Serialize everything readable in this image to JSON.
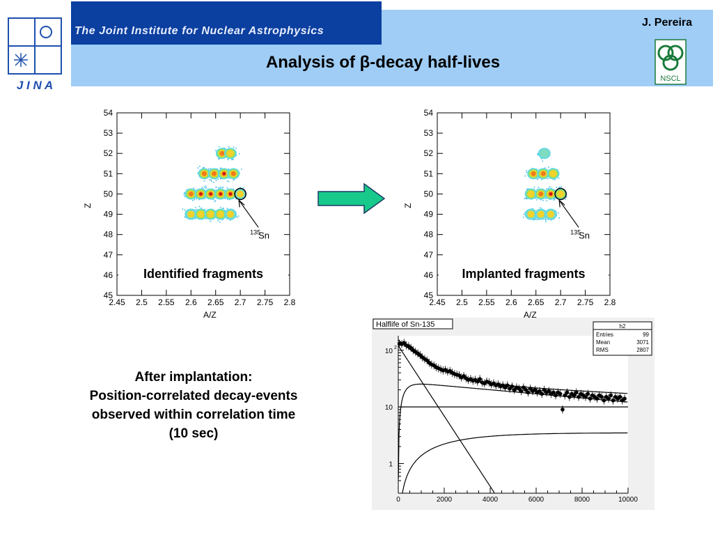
{
  "header": {
    "institute": "The Joint Institute for Nuclear Astrophysics",
    "author": "J. Pereira",
    "title": "Analysis of β-decay half-lives",
    "jina_logo_text": "J I N A",
    "nscl_logo_text": "NSCL"
  },
  "caption": {
    "line1": "After implantation:",
    "line2": "Position-correlated decay-events",
    "line3": "observed within correlation time",
    "line4": "(10 sec)"
  },
  "chart_data": [
    {
      "type": "heatmap",
      "title": "",
      "inset_label": "Identified fragments",
      "xlabel": "A/Z",
      "ylabel": "Z",
      "xlim": [
        2.45,
        2.8
      ],
      "ylim": [
        45,
        54
      ],
      "x_ticks": [
        "2.45",
        "2.5",
        "2.55",
        "2.6",
        "2.65",
        "2.7",
        "2.75",
        "2.8"
      ],
      "y_ticks": [
        "45",
        "46",
        "47",
        "48",
        "49",
        "50",
        "51",
        "52",
        "53",
        "54"
      ],
      "annotation": {
        "text": "Sn",
        "mass": "135",
        "x": 2.7,
        "y": 50
      },
      "blobs": [
        {
          "x": 2.663,
          "y": 52,
          "intensity": 0.75
        },
        {
          "x": 2.68,
          "y": 52,
          "intensity": 0.6
        },
        {
          "x": 2.627,
          "y": 51,
          "intensity": 0.65
        },
        {
          "x": 2.647,
          "y": 51,
          "intensity": 0.8
        },
        {
          "x": 2.667,
          "y": 51,
          "intensity": 0.85
        },
        {
          "x": 2.686,
          "y": 51,
          "intensity": 0.7
        },
        {
          "x": 2.6,
          "y": 50,
          "intensity": 0.7
        },
        {
          "x": 2.62,
          "y": 50,
          "intensity": 0.85
        },
        {
          "x": 2.64,
          "y": 50,
          "intensity": 1.0
        },
        {
          "x": 2.66,
          "y": 50,
          "intensity": 0.95
        },
        {
          "x": 2.68,
          "y": 50,
          "intensity": 0.9
        },
        {
          "x": 2.7,
          "y": 50,
          "intensity": 0.45
        },
        {
          "x": 2.6,
          "y": 49,
          "intensity": 0.5
        },
        {
          "x": 2.62,
          "y": 49,
          "intensity": 0.55
        },
        {
          "x": 2.64,
          "y": 49,
          "intensity": 0.6
        },
        {
          "x": 2.66,
          "y": 49,
          "intensity": 0.6
        },
        {
          "x": 2.68,
          "y": 49,
          "intensity": 0.5
        }
      ]
    },
    {
      "type": "heatmap",
      "title": "",
      "inset_label": "Implanted fragments",
      "xlabel": "A/Z",
      "ylabel": "Z",
      "xlim": [
        2.45,
        2.8
      ],
      "ylim": [
        45,
        54
      ],
      "x_ticks": [
        "2.45",
        "2.5",
        "2.55",
        "2.6",
        "2.65",
        "2.7",
        "2.75",
        "2.8"
      ],
      "y_ticks": [
        "45",
        "46",
        "47",
        "48",
        "49",
        "50",
        "51",
        "52",
        "53",
        "54"
      ],
      "annotation": {
        "text": "Sn",
        "mass": "135",
        "x": 2.7,
        "y": 50
      },
      "blobs": [
        {
          "x": 2.667,
          "y": 52,
          "intensity": 0.35
        },
        {
          "x": 2.645,
          "y": 51,
          "intensity": 0.75
        },
        {
          "x": 2.665,
          "y": 51,
          "intensity": 0.8
        },
        {
          "x": 2.685,
          "y": 51,
          "intensity": 0.55
        },
        {
          "x": 2.64,
          "y": 50,
          "intensity": 0.55
        },
        {
          "x": 2.66,
          "y": 50,
          "intensity": 0.75
        },
        {
          "x": 2.68,
          "y": 50,
          "intensity": 0.95
        },
        {
          "x": 2.7,
          "y": 50,
          "intensity": 0.6
        },
        {
          "x": 2.64,
          "y": 49,
          "intensity": 0.45
        },
        {
          "x": 2.66,
          "y": 49,
          "intensity": 0.5
        },
        {
          "x": 2.68,
          "y": 49,
          "intensity": 0.45
        }
      ]
    },
    {
      "type": "scatter",
      "title": "Halflife of Sn-135",
      "xlabel": "",
      "ylabel": "",
      "xlim": [
        0,
        10000
      ],
      "ylim": [
        0.3,
        180
      ],
      "y_scale": "log",
      "x_ticks": [
        "0",
        "2000",
        "4000",
        "6000",
        "8000",
        "10000"
      ],
      "y_ticks": [
        {
          "value": 100,
          "label": "10",
          "sup": "2"
        },
        {
          "value": 10,
          "label": "10",
          "sup": ""
        },
        {
          "value": 1,
          "label": "1",
          "sup": ""
        }
      ],
      "stats_box": {
        "name": "h2",
        "rows": [
          {
            "label": "Entries",
            "value": "99"
          },
          {
            "label": "Mean",
            "value": "3071"
          },
          {
            "label": "RMS",
            "value": "2807"
          }
        ]
      },
      "points": [
        [
          50,
          130
        ],
        [
          150,
          128
        ],
        [
          250,
          135
        ],
        [
          350,
          122
        ],
        [
          450,
          118
        ],
        [
          550,
          110
        ],
        [
          650,
          100
        ],
        [
          750,
          94
        ],
        [
          850,
          88
        ],
        [
          950,
          82
        ],
        [
          1050,
          75
        ],
        [
          1150,
          70
        ],
        [
          1250,
          66
        ],
        [
          1350,
          60
        ],
        [
          1450,
          56
        ],
        [
          1550,
          54
        ],
        [
          1650,
          50
        ],
        [
          1750,
          48
        ],
        [
          1850,
          46
        ],
        [
          1950,
          44
        ],
        [
          2050,
          45
        ],
        [
          2150,
          42
        ],
        [
          2250,
          43
        ],
        [
          2350,
          40
        ],
        [
          2450,
          38
        ],
        [
          2550,
          37
        ],
        [
          2650,
          36
        ],
        [
          2750,
          33
        ],
        [
          2850,
          35
        ],
        [
          2950,
          32
        ],
        [
          3050,
          30
        ],
        [
          3150,
          31
        ],
        [
          3250,
          29
        ],
        [
          3350,
          30
        ],
        [
          3450,
          28
        ],
        [
          3550,
          31
        ],
        [
          3650,
          27
        ],
        [
          3750,
          26
        ],
        [
          3850,
          28
        ],
        [
          3950,
          27
        ],
        [
          4050,
          25
        ],
        [
          4150,
          26
        ],
        [
          4250,
          24
        ],
        [
          4350,
          25
        ],
        [
          4450,
          23
        ],
        [
          4550,
          24
        ],
        [
          4650,
          22
        ],
        [
          4750,
          24
        ],
        [
          4850,
          21
        ],
        [
          4950,
          23
        ],
        [
          5050,
          20
        ],
        [
          5150,
          22
        ],
        [
          5250,
          21
        ],
        [
          5350,
          19
        ],
        [
          5450,
          22
        ],
        [
          5550,
          20
        ],
        [
          5650,
          18
        ],
        [
          5750,
          21
        ],
        [
          5850,
          19
        ],
        [
          5950,
          20
        ],
        [
          6050,
          18
        ],
        [
          6150,
          19
        ],
        [
          6250,
          17
        ],
        [
          6350,
          20
        ],
        [
          6450,
          18
        ],
        [
          6550,
          19
        ],
        [
          6650,
          17
        ],
        [
          6750,
          18
        ],
        [
          6850,
          16
        ],
        [
          6950,
          18
        ],
        [
          7050,
          17
        ],
        [
          7150,
          9
        ],
        [
          7250,
          16
        ],
        [
          7350,
          18
        ],
        [
          7450,
          15
        ],
        [
          7550,
          17
        ],
        [
          7650,
          16
        ],
        [
          7750,
          18
        ],
        [
          7850,
          15
        ],
        [
          7950,
          17
        ],
        [
          8050,
          16
        ],
        [
          8150,
          15
        ],
        [
          8250,
          17
        ],
        [
          8350,
          14
        ],
        [
          8450,
          16
        ],
        [
          8550,
          15
        ],
        [
          8650,
          14
        ],
        [
          8750,
          16
        ],
        [
          8850,
          15
        ],
        [
          8950,
          13
        ],
        [
          9050,
          15
        ],
        [
          9150,
          14
        ],
        [
          9250,
          16
        ],
        [
          9350,
          13
        ],
        [
          9450,
          15
        ],
        [
          9550,
          14
        ],
        [
          9650,
          15
        ],
        [
          9750,
          13
        ],
        [
          9850,
          14
        ]
      ],
      "curves": [
        {
          "kind": "total",
          "formula": "120*exp(-t/1000)+22*exp(-t/9000)+10"
        },
        {
          "kind": "parent",
          "formula": "120*exp(-t/700)"
        },
        {
          "kind": "daughter",
          "formula": "28*(exp(-t/12000)-exp(-t/250))"
        },
        {
          "kind": "background",
          "value": 10
        },
        {
          "kind": "granddaughter",
          "formula": "3.5*(1-exp(-t/2000))"
        }
      ]
    }
  ]
}
